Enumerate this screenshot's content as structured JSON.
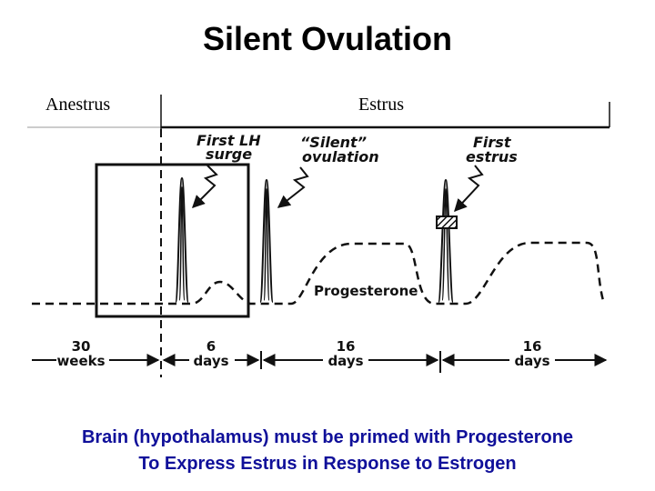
{
  "title": "Silent Ovulation",
  "phases": {
    "left": "Anestrus",
    "right": "Estrus"
  },
  "annotations": {
    "first_lh_surge": [
      "First LH",
      "surge"
    ],
    "silent_ovulation": [
      "“Silent”",
      "ovulation"
    ],
    "first_estrus": [
      "First",
      "estrus"
    ],
    "progesterone": "Progesterone"
  },
  "timeline": [
    {
      "value": "30",
      "unit": "weeks"
    },
    {
      "value": "6",
      "unit": "days"
    },
    {
      "value": "16",
      "unit": "days"
    },
    {
      "value": "16",
      "unit": "days"
    }
  ],
  "caption": [
    "Brain (hypothalamus) must be primed with Progesterone",
    "To Express Estrus in Response to Estrogen"
  ],
  "colors": {
    "caption": "#10109a",
    "ink": "#111111"
  }
}
